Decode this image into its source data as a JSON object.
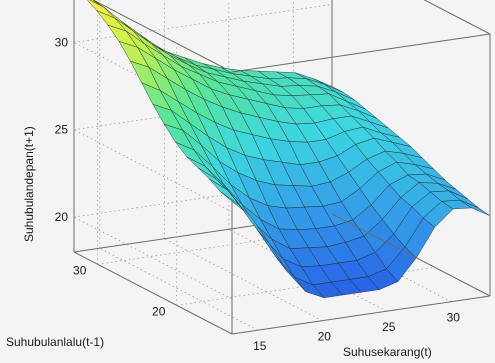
{
  "chart_data": {
    "type": "surface",
    "title": "",
    "xlabel": "Suhusekarang(t)",
    "ylabel": "Suhubulanlalu(t-1)",
    "zlabel": "Suhubulandepan(t+1)",
    "xlim": [
      13,
      33
    ],
    "ylim": [
      13,
      33
    ],
    "zlim": [
      18,
      33
    ],
    "x_ticks": [
      "15",
      "20",
      "25",
      "30"
    ],
    "y_ticks": [
      "20",
      "30"
    ],
    "z_ticks": [
      "20",
      "25",
      "30"
    ],
    "grid": true,
    "colormap": "yellow-green-cyan-blue",
    "colors": {
      "high": "#f6f33a",
      "mid": "#44d69a",
      "low": "#2e73e6",
      "edge": "#222222"
    },
    "x": [
      13,
      14.43,
      15.86,
      17.29,
      18.71,
      20.14,
      21.57,
      23,
      24.43,
      25.86,
      27.29,
      28.71,
      30.14,
      31.57,
      33
    ],
    "y": [
      13,
      14.43,
      15.86,
      17.29,
      18.71,
      20.14,
      21.57,
      23,
      24.43,
      25.86,
      27.29,
      28.71,
      30.14,
      31.57,
      33
    ],
    "z": [
      [
        25.6,
        24.6,
        22.9,
        21.1,
        19.8,
        19.3,
        19.3,
        19.3,
        19.3,
        19.6,
        20.8,
        22.4,
        23.3,
        23.2,
        22.6
      ],
      [
        25.8,
        24.9,
        23.3,
        21.6,
        20.3,
        19.7,
        19.7,
        19.7,
        19.7,
        20.0,
        21.1,
        22.6,
        23.4,
        23.3,
        22.7
      ],
      [
        26.2,
        25.4,
        23.9,
        22.3,
        21.0,
        20.4,
        20.3,
        20.3,
        20.3,
        20.6,
        21.5,
        22.9,
        23.6,
        23.5,
        22.9
      ],
      [
        26.5,
        25.7,
        24.4,
        22.9,
        21.8,
        21.1,
        21.0,
        20.9,
        21.0,
        21.2,
        22.0,
        23.1,
        23.8,
        23.6,
        23.1
      ],
      [
        26.8,
        26.1,
        24.9,
        23.6,
        22.6,
        21.9,
        21.7,
        21.6,
        21.6,
        21.8,
        22.5,
        23.5,
        23.9,
        23.8,
        23.3
      ],
      [
        27.3,
        26.7,
        25.6,
        24.4,
        23.5,
        22.9,
        22.6,
        22.5,
        22.4,
        22.5,
        23.1,
        23.9,
        24.3,
        24.0,
        23.6
      ],
      [
        28.0,
        27.5,
        26.5,
        25.4,
        24.6,
        24.0,
        23.6,
        23.4,
        23.2,
        23.3,
        23.7,
        24.3,
        24.6,
        24.3,
        23.9
      ],
      [
        28.8,
        28.3,
        27.4,
        26.5,
        25.7,
        25.1,
        24.7,
        24.4,
        24.1,
        24.1,
        24.3,
        24.8,
        25.0,
        24.6,
        24.2
      ],
      [
        29.7,
        29.1,
        28.3,
        27.5,
        26.8,
        26.2,
        25.8,
        25.4,
        25.1,
        24.9,
        24.9,
        25.2,
        25.3,
        24.8,
        24.4
      ],
      [
        30.6,
        30.1,
        29.3,
        28.5,
        27.8,
        27.2,
        26.7,
        26.3,
        25.9,
        25.6,
        25.5,
        25.6,
        25.6,
        25.1,
        24.6
      ],
      [
        31.4,
        30.9,
        30.1,
        29.3,
        28.6,
        27.9,
        27.4,
        27.0,
        26.6,
        26.2,
        26.0,
        26.0,
        25.9,
        25.4,
        24.8
      ],
      [
        32.0,
        31.5,
        30.6,
        29.8,
        29.0,
        28.4,
        27.8,
        27.4,
        27.0,
        26.6,
        26.4,
        26.3,
        26.2,
        25.6,
        25.0
      ],
      [
        32.5,
        31.9,
        31.0,
        30.1,
        29.3,
        28.6,
        28.0,
        27.6,
        27.2,
        26.9,
        26.6,
        26.5,
        26.3,
        25.8,
        25.2
      ],
      [
        32.9,
        32.2,
        31.2,
        30.3,
        29.4,
        28.7,
        28.1,
        27.7,
        27.3,
        27.0,
        26.7,
        26.6,
        26.4,
        25.9,
        25.3
      ],
      [
        33.0,
        32.3,
        31.3,
        30.3,
        29.5,
        28.7,
        28.2,
        27.7,
        27.3,
        27.0,
        26.8,
        26.6,
        26.4,
        25.9,
        25.3
      ]
    ]
  }
}
